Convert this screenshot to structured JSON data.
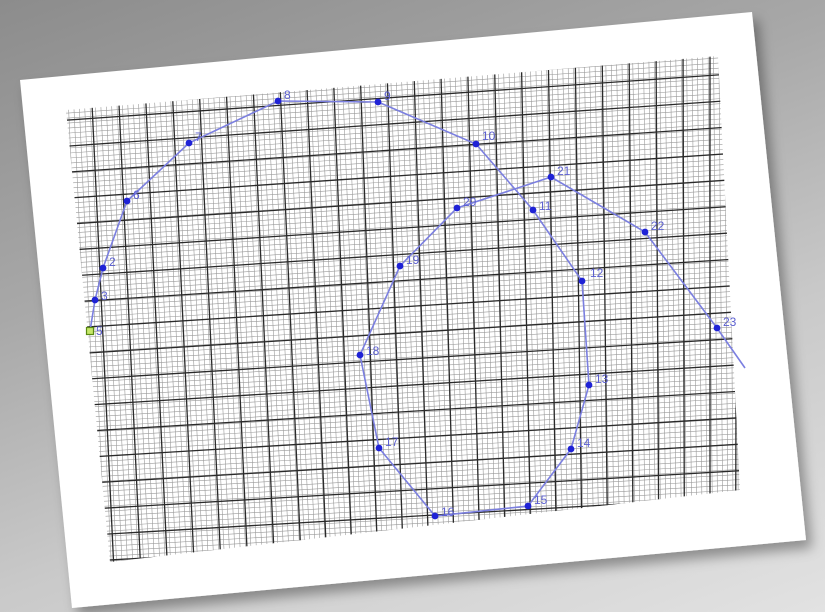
{
  "colors": {
    "background_top": "#8c8c8c",
    "background_bottom": "#e2e2e2",
    "paper": "#ffffff",
    "grid_major": "#2a2a2a",
    "grid_minor": "#9a9a9a",
    "path_line": "#7b7fe0",
    "point_fill": "#1f22d6",
    "label_text": "#5b5fd0",
    "start_point_fill": "#c6e86a",
    "start_point_stroke": "#5a8a12"
  },
  "path_points": [
    {
      "label": "5",
      "start": true
    },
    {
      "label": "3"
    },
    {
      "label": "2"
    },
    {
      "label": "6"
    },
    {
      "label": "7"
    },
    {
      "label": "8"
    },
    {
      "label": "9"
    },
    {
      "label": "10"
    },
    {
      "label": "11"
    },
    {
      "label": "12"
    },
    {
      "label": "13"
    },
    {
      "label": "14"
    },
    {
      "label": "15"
    },
    {
      "label": "16"
    },
    {
      "label": "17"
    },
    {
      "label": "18"
    },
    {
      "label": "19"
    },
    {
      "label": "20"
    },
    {
      "label": "21"
    },
    {
      "label": "22"
    },
    {
      "label": "23"
    }
  ]
}
